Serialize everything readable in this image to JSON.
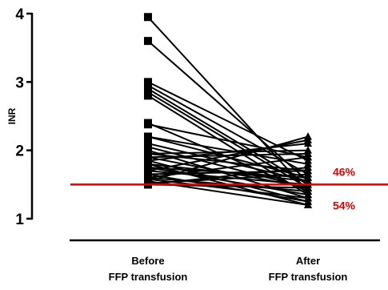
{
  "chart_data": {
    "type": "line",
    "ylabel": "INR",
    "ylim": [
      1,
      4
    ],
    "yticks": [
      "1",
      "2",
      "3",
      "4"
    ],
    "categories": [
      [
        "Before",
        "FFP transfusion"
      ],
      [
        "After",
        "FFP transfusion"
      ]
    ],
    "marker_before": "square",
    "marker_after": "triangle",
    "reference_line": {
      "y": 1.5,
      "color": "#e00000"
    },
    "annotations": [
      {
        "text": "46%",
        "color": "#e00000",
        "position": "above-line"
      },
      {
        "text": "54%",
        "color": "#e00000",
        "position": "below-line"
      }
    ],
    "pairs": [
      [
        3.95,
        1.4
      ],
      [
        3.6,
        1.55
      ],
      [
        3.0,
        1.85
      ],
      [
        2.95,
        1.65
      ],
      [
        2.9,
        1.5
      ],
      [
        2.85,
        1.45
      ],
      [
        2.8,
        1.35
      ],
      [
        2.4,
        1.4
      ],
      [
        2.38,
        1.9
      ],
      [
        2.2,
        1.6
      ],
      [
        2.2,
        1.8
      ],
      [
        2.1,
        1.55
      ],
      [
        2.05,
        1.45
      ],
      [
        2.0,
        1.3
      ],
      [
        1.95,
        1.7
      ],
      [
        1.95,
        2.0
      ],
      [
        1.9,
        1.45
      ],
      [
        1.9,
        1.95
      ],
      [
        1.85,
        1.25
      ],
      [
        1.85,
        2.1
      ],
      [
        1.8,
        1.55
      ],
      [
        1.8,
        1.2
      ],
      [
        1.75,
        1.6
      ],
      [
        1.75,
        1.35
      ],
      [
        1.7,
        2.15
      ],
      [
        1.7,
        1.5
      ],
      [
        1.65,
        1.7
      ],
      [
        1.65,
        1.25
      ],
      [
        1.6,
        1.4
      ],
      [
        1.6,
        1.9
      ],
      [
        1.58,
        1.3
      ],
      [
        1.55,
        2.2
      ],
      [
        1.55,
        1.2
      ],
      [
        1.52,
        1.65
      ],
      [
        1.5,
        1.45
      ],
      [
        1.5,
        1.75
      ]
    ]
  }
}
